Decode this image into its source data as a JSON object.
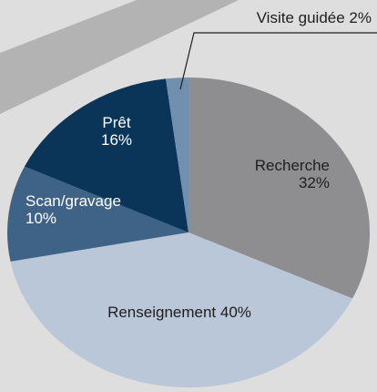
{
  "chart_data": {
    "type": "pie",
    "categories": [
      "Recherche",
      "Renseignement",
      "Scan/gravage",
      "Prêt",
      "Visite guidée"
    ],
    "values": [
      32,
      40,
      10,
      16,
      2
    ],
    "value_labels": [
      "32%",
      "40%",
      "10%",
      "16%",
      "2%"
    ],
    "colors": [
      "#8e8e90",
      "#b9c7d8",
      "#3f6386",
      "#0b3459",
      "#7190b0"
    ]
  }
}
